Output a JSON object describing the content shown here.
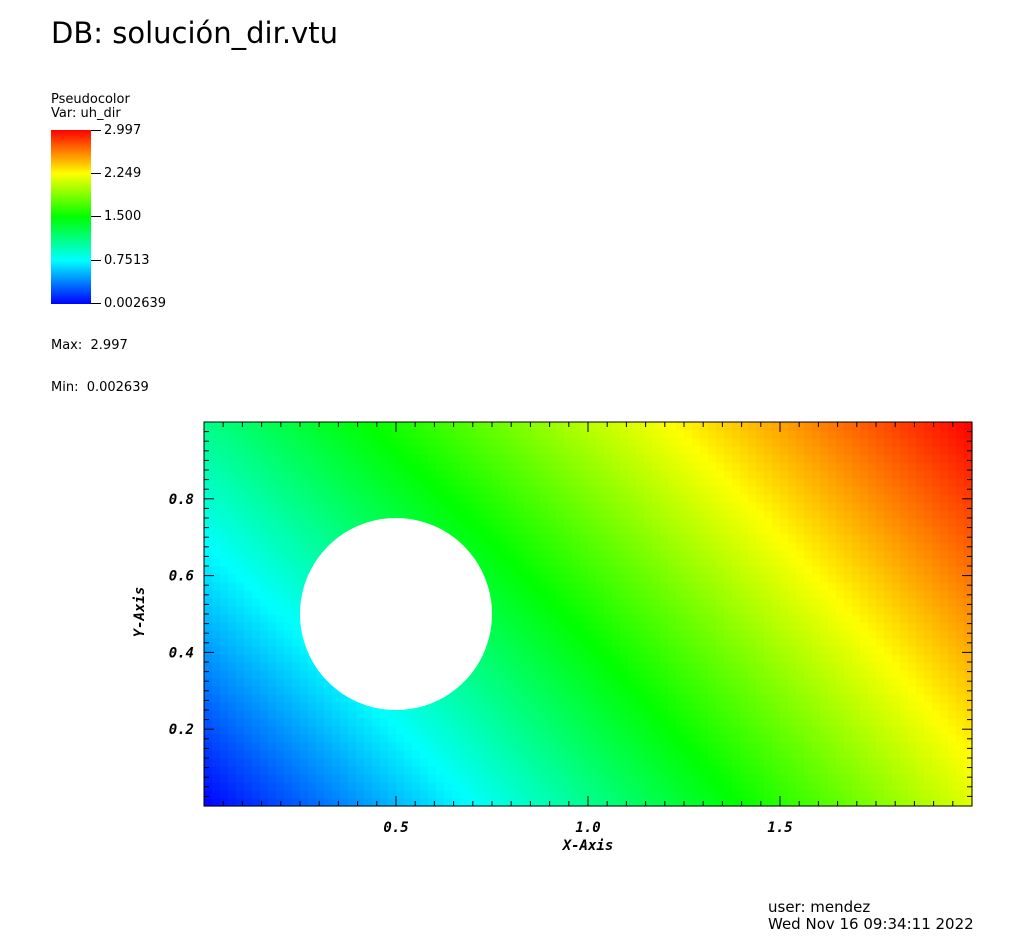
{
  "title": "DB: solución_dir.vtu",
  "legend": {
    "plot_type": "Pseudocolor",
    "var_label": "Var: uh_dir",
    "ticks": [
      "2.997",
      "2.249",
      "1.500",
      "0.7513",
      "0.002639"
    ],
    "max_label": "Max:  2.997",
    "min_label": "Min:  0.002639",
    "colormap": [
      "#0000ff",
      "#00ffff",
      "#00ff00",
      "#ffff00",
      "#ff0000"
    ]
  },
  "footer": {
    "user": "user: mendez",
    "timestamp": "Wed Nov 16 09:34:11 2022"
  },
  "chart_data": {
    "type": "heatmap",
    "xlabel": "X-Axis",
    "ylabel": "Y-Axis",
    "xlim": [
      0,
      2
    ],
    "ylim": [
      0,
      1
    ],
    "xticks": [
      0.5,
      1.0,
      1.5
    ],
    "xtick_labels": [
      "0.5",
      "1.0",
      "1.5"
    ],
    "yticks": [
      0.2,
      0.4,
      0.6,
      0.8
    ],
    "ytick_labels": [
      "0.2",
      "0.4",
      "0.6",
      "0.8"
    ],
    "value_range": [
      0.002639,
      2.997
    ],
    "corner_values": {
      "x0_y0": 0.002639,
      "x2_y0": 2.15,
      "x0_y1": 1.1,
      "x2_y1": 2.997
    },
    "hole": {
      "shape": "circle",
      "cx": 0.5,
      "cy": 0.5,
      "r": 0.25
    }
  }
}
